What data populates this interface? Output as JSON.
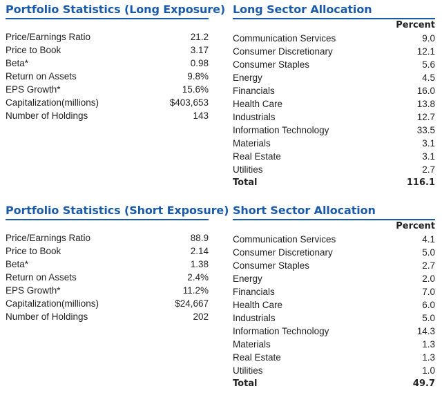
{
  "long_stats": {
    "title": "Portfolio Statistics (Long Exposure)",
    "rows": [
      {
        "label": "Price/Earnings Ratio",
        "value": "21.2"
      },
      {
        "label": "Price to Book",
        "value": "3.17"
      },
      {
        "label": "Beta*",
        "value": "0.98"
      },
      {
        "label": "Return on Assets",
        "value": "9.8%"
      },
      {
        "label": "EPS Growth*",
        "value": "15.6%"
      },
      {
        "label": "Capitalization(millions)",
        "value": "$403,653"
      },
      {
        "label": "Number of Holdings",
        "value": "143"
      }
    ]
  },
  "long_sector": {
    "title": "Long Sector Allocation",
    "column_header": "Percent",
    "rows": [
      {
        "label": "Communication Services",
        "value": "9.0"
      },
      {
        "label": "Consumer Discretionary",
        "value": "12.1"
      },
      {
        "label": "Consumer Staples",
        "value": "5.6"
      },
      {
        "label": "Energy",
        "value": "4.5"
      },
      {
        "label": "Financials",
        "value": "16.0"
      },
      {
        "label": "Health Care",
        "value": "13.8"
      },
      {
        "label": "Industrials",
        "value": "12.7"
      },
      {
        "label": "Information Technology",
        "value": "33.5"
      },
      {
        "label": "Materials",
        "value": "3.1"
      },
      {
        "label": "Real Estate",
        "value": "3.1"
      },
      {
        "label": "Utilities",
        "value": "2.7"
      }
    ],
    "total": {
      "label": "Total",
      "value": "116.1"
    }
  },
  "short_stats": {
    "title": "Portfolio Statistics (Short Exposure)",
    "rows": [
      {
        "label": "Price/Earnings Ratio",
        "value": "88.9"
      },
      {
        "label": "Price to Book",
        "value": "2.14"
      },
      {
        "label": "Beta*",
        "value": "1.38"
      },
      {
        "label": "Return on Assets",
        "value": "2.4%"
      },
      {
        "label": "EPS Growth*",
        "value": "11.2%"
      },
      {
        "label": "Capitalization(millions)",
        "value": "$24,667"
      },
      {
        "label": "Number of Holdings",
        "value": "202"
      }
    ]
  },
  "short_sector": {
    "title": "Short Sector Allocation",
    "column_header": "Percent",
    "rows": [
      {
        "label": "Communication Services",
        "value": "4.1"
      },
      {
        "label": "Consumer Discretionary",
        "value": "5.0"
      },
      {
        "label": "Consumer Staples",
        "value": "2.7"
      },
      {
        "label": "Energy",
        "value": "2.0"
      },
      {
        "label": "Financials",
        "value": "7.0"
      },
      {
        "label": "Health Care",
        "value": "6.0"
      },
      {
        "label": "Industrials",
        "value": "5.0"
      },
      {
        "label": "Information Technology",
        "value": "14.3"
      },
      {
        "label": "Materials",
        "value": "1.3"
      },
      {
        "label": "Real Estate",
        "value": "1.3"
      },
      {
        "label": "Utilities",
        "value": "1.0"
      }
    ],
    "total": {
      "label": "Total",
      "value": "49.7"
    }
  },
  "colors": {
    "heading_blue": "#1a5aa8",
    "text": "#222222"
  }
}
